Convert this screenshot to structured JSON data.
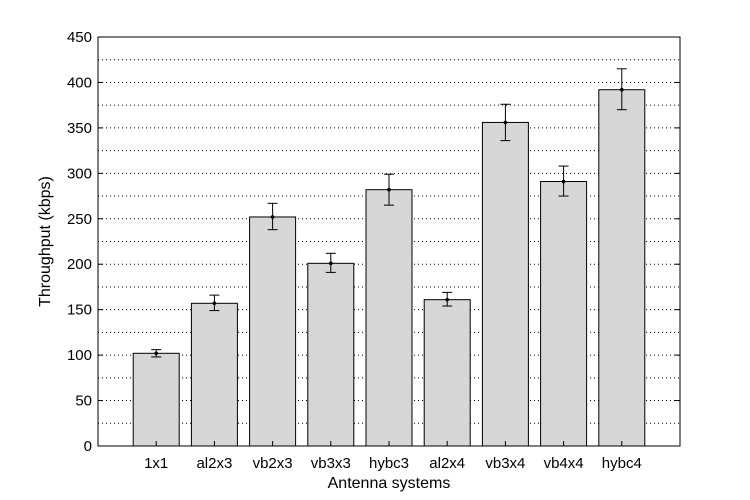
{
  "chart_data": {
    "type": "bar",
    "title": "",
    "xlabel": "Antenna systems",
    "ylabel": "Throughput (kbps)",
    "ylim": [
      0,
      450
    ],
    "yticks": [
      0,
      50,
      100,
      150,
      200,
      250,
      300,
      350,
      400,
      450
    ],
    "yticks_minor": [
      25,
      75,
      125,
      175,
      225,
      275,
      325,
      375,
      425
    ],
    "grid": "dotted horizontal, major and minor",
    "categories": [
      "1x1",
      "al2x3",
      "vb2x3",
      "vb3x3",
      "hybc3",
      "al2x4",
      "vb3x4",
      "vb4x4",
      "hybc4"
    ],
    "values": [
      102,
      157,
      252,
      201,
      282,
      161,
      356,
      291,
      392
    ],
    "error_low": [
      98,
      149,
      238,
      191,
      265,
      154,
      336,
      275,
      370
    ],
    "error_high": [
      106,
      166,
      267,
      212,
      299,
      169,
      376,
      308,
      415
    ],
    "colors": {
      "bar_fill": "#d7d7d7",
      "bar_edge": "#000000",
      "grid": "#000000",
      "error": "#000000"
    }
  }
}
